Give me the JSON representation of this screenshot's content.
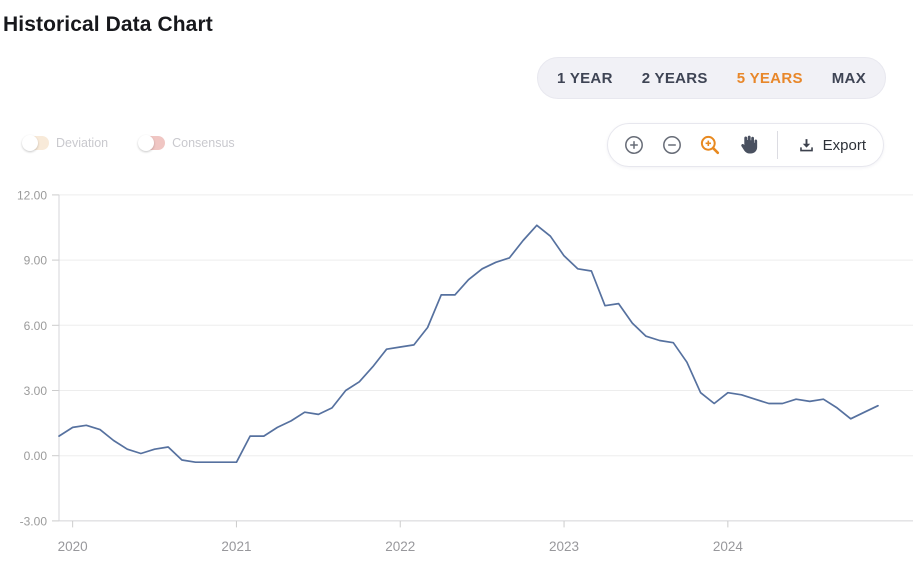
{
  "page": {
    "title": "Historical Data Chart"
  },
  "range_selector": {
    "active_color": "#e8872a",
    "options": [
      {
        "label": "1 YEAR",
        "active": false
      },
      {
        "label": "2 YEARS",
        "active": false
      },
      {
        "label": "5 YEARS",
        "active": true
      },
      {
        "label": "MAX",
        "active": false
      }
    ]
  },
  "toggles": [
    {
      "label": "Deviation",
      "track_color": "#f8ead9"
    },
    {
      "label": "Consensus",
      "track_color": "#f0c6c3"
    }
  ],
  "toolbar": {
    "buttons": [
      "zoom-in",
      "zoom-out",
      "zoom-selection",
      "pan"
    ],
    "active_button": "zoom-selection",
    "active_color": "#e8891f",
    "icon_color": "#676c77",
    "pan_color": "#4a5160",
    "export_label": "Export"
  },
  "chart_data": {
    "type": "line",
    "title": "Historical Data Chart",
    "frequency": "monthly",
    "line_color": "#56719f",
    "grid": true,
    "legend": "none",
    "ylim": [
      -3,
      12
    ],
    "y_ticks": [
      "12.00",
      "9.00",
      "6.00",
      "3.00",
      "0.00",
      "-3.00"
    ],
    "x_ticks": [
      "2020",
      "2021",
      "2022",
      "2023",
      "2024"
    ],
    "months": [
      "2019-11",
      "2019-12",
      "2020-01",
      "2020-02",
      "2020-03",
      "2020-04",
      "2020-05",
      "2020-06",
      "2020-07",
      "2020-08",
      "2020-09",
      "2020-10",
      "2020-11",
      "2020-12",
      "2021-01",
      "2021-02",
      "2021-03",
      "2021-04",
      "2021-05",
      "2021-06",
      "2021-07",
      "2021-08",
      "2021-09",
      "2021-10",
      "2021-11",
      "2021-12",
      "2022-01",
      "2022-02",
      "2022-03",
      "2022-04",
      "2022-05",
      "2022-06",
      "2022-07",
      "2022-08",
      "2022-09",
      "2022-10",
      "2022-11",
      "2022-12",
      "2023-01",
      "2023-02",
      "2023-03",
      "2023-04",
      "2023-05",
      "2023-06",
      "2023-07",
      "2023-08",
      "2023-09",
      "2023-10",
      "2023-11",
      "2023-12",
      "2024-01",
      "2024-02",
      "2024-03",
      "2024-04",
      "2024-05",
      "2024-06",
      "2024-07",
      "2024-08",
      "2024-09",
      "2024-10",
      "2024-11"
    ],
    "values": [
      0.9,
      1.3,
      1.4,
      1.2,
      0.7,
      0.3,
      0.1,
      0.3,
      0.4,
      -0.2,
      -0.3,
      -0.3,
      -0.3,
      -0.3,
      0.9,
      0.9,
      1.3,
      1.6,
      2.0,
      1.9,
      2.2,
      3.0,
      3.4,
      4.1,
      4.9,
      5.0,
      5.1,
      5.9,
      7.4,
      7.4,
      8.1,
      8.6,
      8.9,
      9.1,
      9.9,
      10.6,
      10.1,
      9.2,
      8.6,
      8.5,
      6.9,
      7.0,
      6.1,
      5.5,
      5.3,
      5.2,
      4.3,
      2.9,
      2.4,
      2.9,
      2.8,
      2.6,
      2.4,
      2.4,
      2.6,
      2.5,
      2.6,
      2.2,
      1.7,
      2.0,
      2.3
    ]
  }
}
